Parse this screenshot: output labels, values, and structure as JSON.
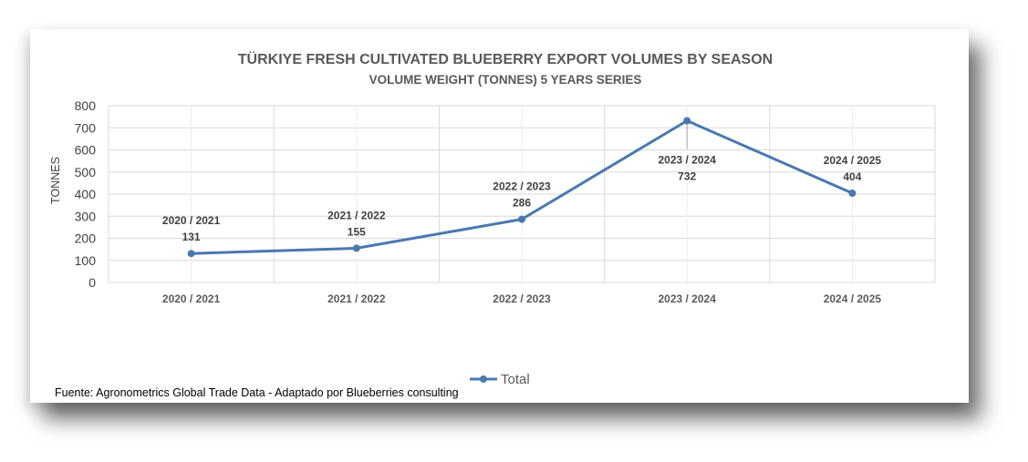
{
  "chart_data": {
    "type": "line",
    "title": "TÜRKIYE FRESH CULTIVATED BLUEBERRY EXPORT VOLUMES BY SEASON",
    "subtitle": "VOLUME WEIGHT (TONNES) 5 YEARS SERIES",
    "ylabel": "TONNES",
    "xlabel": "",
    "categories": [
      "2020 / 2021",
      "2021 / 2022",
      "2022 / 2023",
      "2023 / 2024",
      "2024 / 2025"
    ],
    "series": [
      {
        "name": "Total",
        "values": [
          131,
          155,
          286,
          732,
          404
        ],
        "color": "#4a78b0"
      }
    ],
    "ylim": [
      0,
      800
    ],
    "yticks": [
      "0",
      "100",
      "200",
      "300",
      "400",
      "500",
      "600",
      "700",
      "800"
    ],
    "grid": true,
    "legend_position": "bottom",
    "data_labels": [
      {
        "category": "2020 / 2021",
        "value": "131"
      },
      {
        "category": "2021 / 2022",
        "value": "155"
      },
      {
        "category": "2022 / 2023",
        "value": "286"
      },
      {
        "category": "2023 / 2024",
        "value": "732"
      },
      {
        "category": "2024 / 2025",
        "value": "404"
      }
    ]
  },
  "source_note": "Fuente: Agronometrics Global Trade Data - Adaptado por Blueberries consulting",
  "colors": {
    "line": "#4a78b0",
    "grid": "#d9d9d9",
    "text": "#595959"
  }
}
